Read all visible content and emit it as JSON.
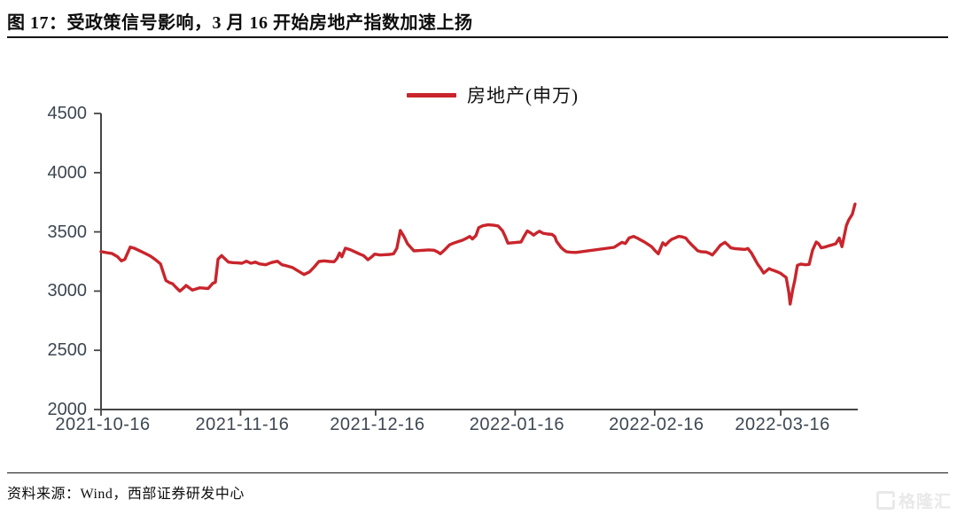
{
  "title": "图 17：受政策信号影响，3 月 16 开始房地产指数加速上扬",
  "legend": {
    "label": "房地产(申万)"
  },
  "footer": {
    "source_label": "资料来源：Wind，西部证券研发中心"
  },
  "watermark": {
    "text": "格隆汇"
  },
  "colors": {
    "line": "#c9252c",
    "axis": "#454545",
    "tick_label": "#3d4752"
  },
  "chart_data": {
    "type": "line",
    "title": "",
    "series_name": "房地产(申万)",
    "legend_position": "top-center",
    "grid": false,
    "x_start_date": "2021-10-16",
    "x_unit": "days_since_2021-10-16",
    "x_tick_labels": [
      "2021-10-16",
      "2021-11-16",
      "2021-12-16",
      "2022-01-16",
      "2022-02-16",
      "2022-03-16"
    ],
    "x_tick_days": [
      0,
      31,
      61,
      92,
      123,
      151
    ],
    "x_range_days": [
      0,
      168
    ],
    "ylim": [
      2000,
      4500
    ],
    "y_ticks": [
      2000,
      2500,
      3000,
      3500,
      4000,
      4500
    ],
    "points": [
      [
        0,
        3334
      ],
      [
        1.2,
        3325
      ],
      [
        2.4,
        3318
      ],
      [
        3.7,
        3290
      ],
      [
        4.5,
        3255
      ],
      [
        5.3,
        3268
      ],
      [
        6.5,
        3372
      ],
      [
        7.5,
        3360
      ],
      [
        8.7,
        3338
      ],
      [
        9.8,
        3318
      ],
      [
        11,
        3295
      ],
      [
        12.2,
        3262
      ],
      [
        13.2,
        3230
      ],
      [
        14.4,
        3090
      ],
      [
        15.2,
        3072
      ],
      [
        15.9,
        3062
      ],
      [
        16.7,
        3030
      ],
      [
        17.5,
        3000
      ],
      [
        18.3,
        3025
      ],
      [
        18.9,
        3048
      ],
      [
        19.5,
        3030
      ],
      [
        20.3,
        3008
      ],
      [
        21.1,
        3018
      ],
      [
        21.9,
        3028
      ],
      [
        22.8,
        3025
      ],
      [
        23.8,
        3022
      ],
      [
        24.8,
        3065
      ],
      [
        25.4,
        3075
      ],
      [
        26,
        3270
      ],
      [
        26.8,
        3300
      ],
      [
        27.6,
        3270
      ],
      [
        28.3,
        3245
      ],
      [
        29.3,
        3240
      ],
      [
        30.3,
        3238
      ],
      [
        31.3,
        3235
      ],
      [
        32.3,
        3252
      ],
      [
        33.3,
        3235
      ],
      [
        34.3,
        3245
      ],
      [
        35.2,
        3230
      ],
      [
        36.6,
        3222
      ],
      [
        37.8,
        3240
      ],
      [
        39.2,
        3252
      ],
      [
        40.2,
        3222
      ],
      [
        41.1,
        3215
      ],
      [
        42.5,
        3200
      ],
      [
        43.7,
        3172
      ],
      [
        45.1,
        3140
      ],
      [
        46.3,
        3162
      ],
      [
        47.4,
        3205
      ],
      [
        48.4,
        3250
      ],
      [
        49.6,
        3255
      ],
      [
        50.8,
        3250
      ],
      [
        51.8,
        3248
      ],
      [
        52.4,
        3275
      ],
      [
        53,
        3322
      ],
      [
        53.5,
        3290
      ],
      [
        54.3,
        3362
      ],
      [
        55.3,
        3350
      ],
      [
        56.5,
        3330
      ],
      [
        57.5,
        3312
      ],
      [
        58.3,
        3300
      ],
      [
        59.3,
        3265
      ],
      [
        60,
        3285
      ],
      [
        60.8,
        3312
      ],
      [
        62,
        3305
      ],
      [
        63.2,
        3308
      ],
      [
        64.2,
        3310
      ],
      [
        65,
        3315
      ],
      [
        65.7,
        3360
      ],
      [
        66.5,
        3512
      ],
      [
        67.3,
        3460
      ],
      [
        68.1,
        3400
      ],
      [
        68.9,
        3365
      ],
      [
        69.5,
        3340
      ],
      [
        70.5,
        3342
      ],
      [
        71.7,
        3345
      ],
      [
        72.8,
        3348
      ],
      [
        74,
        3345
      ],
      [
        74.8,
        3330
      ],
      [
        75.4,
        3315
      ],
      [
        76.4,
        3350
      ],
      [
        77.4,
        3390
      ],
      [
        78.3,
        3405
      ],
      [
        79.3,
        3418
      ],
      [
        80.3,
        3430
      ],
      [
        81.3,
        3448
      ],
      [
        81.9,
        3462
      ],
      [
        82.5,
        3440
      ],
      [
        83.3,
        3470
      ],
      [
        83.9,
        3535
      ],
      [
        84.8,
        3552
      ],
      [
        86,
        3560
      ],
      [
        87.2,
        3556
      ],
      [
        88.2,
        3550
      ],
      [
        89.2,
        3510
      ],
      [
        89.8,
        3460
      ],
      [
        90.4,
        3405
      ],
      [
        91.3,
        3408
      ],
      [
        92.3,
        3412
      ],
      [
        93.3,
        3415
      ],
      [
        94.1,
        3470
      ],
      [
        94.7,
        3508
      ],
      [
        95.5,
        3490
      ],
      [
        96.1,
        3472
      ],
      [
        96.9,
        3495
      ],
      [
        97.4,
        3505
      ],
      [
        98.2,
        3488
      ],
      [
        99.2,
        3482
      ],
      [
        100.2,
        3478
      ],
      [
        100.8,
        3460
      ],
      [
        101.2,
        3420
      ],
      [
        101.8,
        3390
      ],
      [
        102.2,
        3368
      ],
      [
        102.8,
        3348
      ],
      [
        103.4,
        3332
      ],
      [
        104.3,
        3328
      ],
      [
        105.5,
        3326
      ],
      [
        114,
        3370
      ],
      [
        114.8,
        3390
      ],
      [
        115.7,
        3412
      ],
      [
        116.5,
        3402
      ],
      [
        117.3,
        3448
      ],
      [
        118.3,
        3462
      ],
      [
        119.1,
        3448
      ],
      [
        119.9,
        3432
      ],
      [
        120.7,
        3415
      ],
      [
        121.5,
        3395
      ],
      [
        122.3,
        3375
      ],
      [
        123,
        3345
      ],
      [
        123.8,
        3315
      ],
      [
        124.8,
        3408
      ],
      [
        125.4,
        3388
      ],
      [
        126.2,
        3420
      ],
      [
        126.8,
        3438
      ],
      [
        127.6,
        3450
      ],
      [
        128.3,
        3462
      ],
      [
        129.1,
        3458
      ],
      [
        129.9,
        3448
      ],
      [
        130.5,
        3420
      ],
      [
        131.1,
        3395
      ],
      [
        131.9,
        3365
      ],
      [
        132.5,
        3342
      ],
      [
        133.3,
        3332
      ],
      [
        134.4,
        3330
      ],
      [
        135.2,
        3318
      ],
      [
        135.8,
        3305
      ],
      [
        136.6,
        3340
      ],
      [
        137.6,
        3388
      ],
      [
        138.6,
        3412
      ],
      [
        139.4,
        3385
      ],
      [
        139.9,
        3365
      ],
      [
        140.9,
        3358
      ],
      [
        142.1,
        3355
      ],
      [
        143.1,
        3352
      ],
      [
        143.7,
        3360
      ],
      [
        144.5,
        3320
      ],
      [
        145.1,
        3280
      ],
      [
        145.9,
        3225
      ],
      [
        146.5,
        3195
      ],
      [
        147.2,
        3152
      ],
      [
        147.8,
        3170
      ],
      [
        148.4,
        3190
      ],
      [
        149,
        3180
      ],
      [
        149.6,
        3172
      ],
      [
        150.4,
        3160
      ],
      [
        151,
        3150
      ],
      [
        151.6,
        3132
      ],
      [
        152.2,
        3115
      ],
      [
        152.8,
        2990
      ],
      [
        153.1,
        2890
      ],
      [
        153.7,
        3020
      ],
      [
        154.1,
        3085
      ],
      [
        154.7,
        3218
      ],
      [
        155.5,
        3228
      ],
      [
        156.5,
        3222
      ],
      [
        157.3,
        3225
      ],
      [
        158.1,
        3348
      ],
      [
        158.9,
        3415
      ],
      [
        159.4,
        3400
      ],
      [
        160,
        3365
      ],
      [
        160.8,
        3372
      ],
      [
        161.6,
        3382
      ],
      [
        162.4,
        3390
      ],
      [
        163.2,
        3400
      ],
      [
        164,
        3448
      ],
      [
        164.6,
        3375
      ],
      [
        165.6,
        3555
      ],
      [
        166.1,
        3600
      ],
      [
        166.9,
        3650
      ],
      [
        167.5,
        3735
      ]
    ]
  }
}
